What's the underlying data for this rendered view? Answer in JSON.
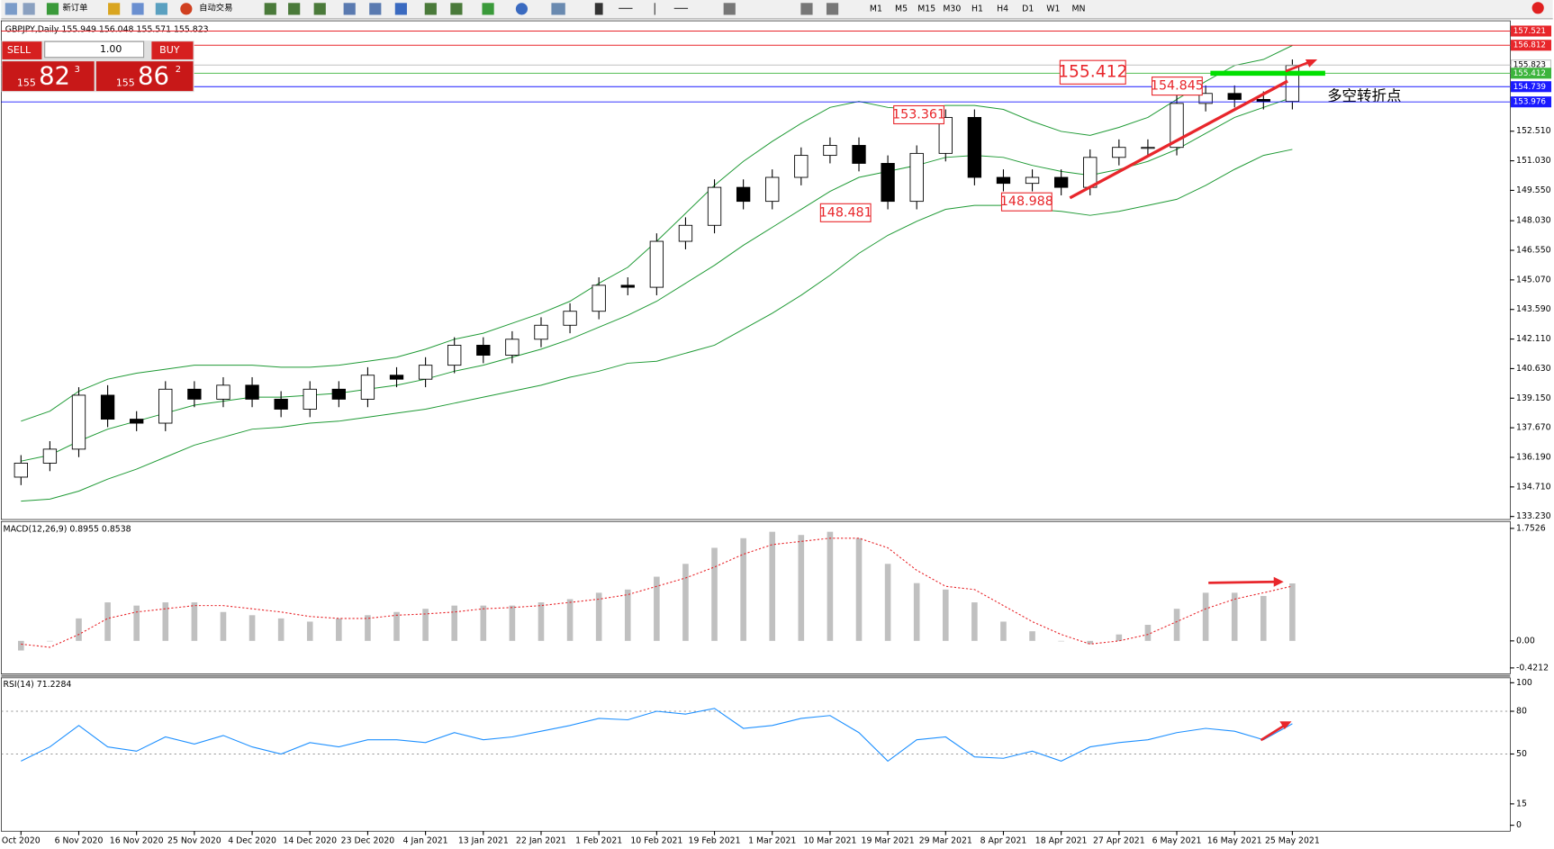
{
  "toolbar": {
    "new_order": "新订单",
    "auto_trading": "自动交易",
    "timeframes": [
      "M1",
      "M5",
      "M15",
      "M30",
      "H1",
      "H4",
      "D1",
      "W1",
      "MN"
    ]
  },
  "trade_panel": {
    "sell": "SELL",
    "buy": "BUY",
    "lot": "1.00",
    "sell_price": [
      "155",
      "82",
      "3"
    ],
    "buy_price": [
      "155",
      "86",
      "2"
    ]
  },
  "chart_data": [
    {
      "type": "candlestick",
      "title": "GBPJPY,Daily 155.949 156.048 155.571 155.823",
      "categories": [
        "Oct 2020",
        null,
        "6 Nov 2020",
        null,
        "16 Nov 2020",
        null,
        "25 Nov 2020",
        null,
        "4 Dec 2020",
        null,
        "14 Dec 2020",
        null,
        "23 Dec 2020",
        null,
        "4 Jan 2021",
        null,
        "13 Jan 2021",
        null,
        "22 Jan 2021",
        null,
        "1 Feb 2021",
        null,
        "10 Feb 2021",
        null,
        "19 Feb 2021",
        null,
        "1 Mar 2021",
        null,
        "10 Mar 2021",
        null,
        "19 Mar 2021",
        null,
        "29 Mar 2021",
        null,
        "8 Apr 2021",
        null,
        "18 Apr 2021",
        null,
        "27 Apr 2021",
        null,
        "6 May 2021",
        null,
        "16 May 2021",
        null,
        "25 May 2021"
      ],
      "open": [
        135.2,
        135.9,
        136.6,
        139.3,
        138.1,
        137.9,
        139.6,
        139.1,
        139.8,
        139.1,
        138.6,
        139.6,
        139.1,
        140.3,
        140.1,
        140.8,
        141.8,
        141.3,
        142.1,
        142.8,
        143.5,
        144.8,
        144.7,
        147.0,
        147.8,
        149.7,
        149.0,
        150.2,
        151.3,
        151.8,
        150.9,
        149.0,
        151.4,
        153.2,
        150.2,
        149.9,
        150.2,
        149.7,
        151.2,
        151.7,
        151.7,
        153.9,
        154.4,
        154.1,
        154.0
      ],
      "high": [
        136.3,
        137.0,
        139.7,
        139.8,
        138.5,
        140.0,
        140.0,
        140.2,
        140.2,
        139.5,
        140.0,
        140.0,
        140.7,
        140.7,
        141.2,
        142.2,
        142.2,
        142.5,
        143.2,
        143.9,
        145.2,
        145.2,
        147.4,
        148.2,
        150.1,
        150.1,
        150.6,
        151.7,
        152.2,
        152.2,
        151.3,
        151.8,
        153.6,
        153.6,
        150.6,
        150.6,
        150.6,
        151.6,
        152.1,
        152.1,
        154.3,
        154.8,
        154.8,
        154.5,
        156.1
      ],
      "low": [
        134.8,
        135.5,
        136.2,
        137.7,
        137.5,
        137.5,
        138.7,
        138.7,
        138.7,
        138.2,
        138.2,
        138.7,
        138.7,
        139.7,
        139.7,
        140.4,
        140.9,
        140.9,
        141.7,
        142.4,
        143.1,
        144.3,
        144.3,
        146.6,
        147.4,
        148.6,
        148.6,
        149.8,
        150.9,
        150.5,
        148.6,
        148.6,
        151.0,
        149.8,
        149.5,
        149.5,
        149.3,
        149.3,
        150.8,
        151.3,
        151.3,
        153.5,
        153.7,
        153.6,
        153.6
      ],
      "close": [
        135.9,
        136.6,
        139.3,
        138.1,
        137.9,
        139.6,
        139.1,
        139.8,
        139.1,
        138.6,
        139.6,
        139.1,
        140.3,
        140.1,
        140.8,
        141.8,
        141.3,
        142.1,
        142.8,
        143.5,
        144.8,
        144.7,
        147.0,
        147.8,
        149.7,
        149.0,
        150.2,
        151.3,
        151.8,
        150.9,
        149.0,
        151.4,
        153.2,
        150.2,
        149.9,
        150.2,
        149.7,
        151.2,
        151.7,
        151.7,
        153.9,
        154.4,
        154.1,
        154.0,
        155.8
      ],
      "bands": {
        "color": "#1f9a35",
        "upper": [
          138.0,
          138.5,
          139.5,
          140.1,
          140.4,
          140.6,
          140.8,
          140.8,
          140.8,
          140.7,
          140.7,
          140.8,
          141.0,
          141.2,
          141.6,
          142.1,
          142.4,
          142.9,
          143.4,
          144.0,
          144.9,
          145.7,
          147.0,
          148.4,
          149.8,
          151.0,
          152.0,
          152.9,
          153.7,
          154.0,
          153.7,
          153.6,
          153.8,
          153.8,
          153.6,
          153.0,
          152.5,
          152.3,
          152.7,
          153.2,
          154.1,
          155.0,
          155.8,
          156.1,
          156.8
        ],
        "middle": [
          136.0,
          136.3,
          137.0,
          137.6,
          138.0,
          138.4,
          138.8,
          139.0,
          139.2,
          139.2,
          139.3,
          139.4,
          139.6,
          139.8,
          140.1,
          140.5,
          140.8,
          141.2,
          141.6,
          142.1,
          142.7,
          143.3,
          144.0,
          144.9,
          145.8,
          146.8,
          147.7,
          148.6,
          149.5,
          150.2,
          150.5,
          150.8,
          151.2,
          151.3,
          151.2,
          150.8,
          150.5,
          150.3,
          150.6,
          151.0,
          151.6,
          152.4,
          153.2,
          153.7,
          154.2
        ],
        "lower": [
          134.0,
          134.1,
          134.5,
          135.1,
          135.6,
          136.2,
          136.8,
          137.2,
          137.6,
          137.7,
          137.9,
          138.0,
          138.2,
          138.4,
          138.6,
          138.9,
          139.2,
          139.5,
          139.8,
          140.2,
          140.5,
          140.9,
          141.0,
          141.4,
          141.8,
          142.6,
          143.4,
          144.3,
          145.3,
          146.4,
          147.3,
          148.0,
          148.6,
          148.8,
          148.8,
          148.6,
          148.5,
          148.3,
          148.5,
          148.8,
          149.1,
          149.8,
          150.6,
          151.3,
          151.6
        ]
      },
      "price_lines": [
        {
          "value": 157.521,
          "color": "#e8262b",
          "text_color": "#ffffff"
        },
        {
          "value": 156.812,
          "color": "#e8262b",
          "text_color": "#ffffff"
        },
        {
          "value": 155.823,
          "color": "#c0c0c0",
          "text_color": "#000000"
        },
        {
          "value": 155.412,
          "color": "#3cb43c",
          "text_color": "#ffffff"
        },
        {
          "value": 154.739,
          "color": "#1a1aff",
          "text_color": "#ffffff"
        },
        {
          "value": 153.976,
          "color": "#1a1aff",
          "text_color": "#ffffff"
        }
      ],
      "annotations": [
        155.412,
        154.845,
        153.361,
        148.481,
        148.988
      ],
      "note": "多空转折点",
      "ylim": [
        133.08,
        157.59
      ],
      "yticks": [
        {
          "value": 133.23,
          "label": "133.230"
        },
        {
          "value": 134.71,
          "label": "134.710"
        },
        {
          "value": 136.19,
          "label": "136.190"
        },
        {
          "value": 137.67,
          "label": "137.670"
        },
        {
          "value": 139.15,
          "label": "139.150"
        },
        {
          "value": 140.63,
          "label": "140.630"
        },
        {
          "value": 142.11,
          "label": "142.110"
        },
        {
          "value": 143.59,
          "label": "143.590"
        },
        {
          "value": 145.07,
          "label": "145.070"
        },
        {
          "value": 146.55,
          "label": "146.550"
        },
        {
          "value": 148.03,
          "label": "148.030"
        },
        {
          "value": 149.55,
          "label": "149.550"
        },
        {
          "value": 151.03,
          "label": "151.030"
        },
        {
          "value": 152.51,
          "label": "152.510"
        }
      ]
    },
    {
      "type": "macd",
      "title": "MACD(12,26,9) 0.8955 0.8538",
      "histogram": {
        "color": "#c0c0c0",
        "values": [
          -0.15,
          0.0,
          0.35,
          0.6,
          0.55,
          0.6,
          0.6,
          0.45,
          0.4,
          0.35,
          0.3,
          0.35,
          0.4,
          0.45,
          0.5,
          0.55,
          0.55,
          0.55,
          0.6,
          0.65,
          0.75,
          0.8,
          1.0,
          1.2,
          1.45,
          1.6,
          1.7,
          1.65,
          1.7,
          1.6,
          1.2,
          0.9,
          0.8,
          0.6,
          0.3,
          0.15,
          0.0,
          -0.05,
          0.1,
          0.25,
          0.5,
          0.75,
          0.75,
          0.7,
          0.8955
        ]
      },
      "signal": {
        "color": "#e8262b",
        "values": [
          -0.05,
          -0.1,
          0.1,
          0.35,
          0.45,
          0.5,
          0.55,
          0.55,
          0.5,
          0.45,
          0.38,
          0.35,
          0.35,
          0.4,
          0.42,
          0.45,
          0.5,
          0.52,
          0.55,
          0.6,
          0.65,
          0.72,
          0.85,
          0.98,
          1.15,
          1.35,
          1.5,
          1.55,
          1.6,
          1.6,
          1.45,
          1.1,
          0.85,
          0.8,
          0.55,
          0.3,
          0.1,
          -0.05,
          0.0,
          0.1,
          0.3,
          0.5,
          0.65,
          0.75,
          0.8538
        ]
      },
      "ylim": [
        -0.4212,
        1.7526
      ],
      "yticks": [
        1.7526,
        {
          "value": 0,
          "label": "0.00"
        },
        -0.4212
      ]
    },
    {
      "type": "line",
      "title": "RSI(14) 71.2284",
      "color": "#1e90ff",
      "values": [
        45,
        55,
        70,
        55,
        52,
        62,
        57,
        63,
        55,
        50,
        58,
        55,
        60,
        60,
        58,
        65,
        60,
        62,
        66,
        70,
        75,
        74,
        80,
        78,
        82,
        68,
        70,
        75,
        77,
        65,
        45,
        60,
        62,
        48,
        47,
        52,
        45,
        55,
        58,
        60,
        65,
        68,
        66,
        60,
        71.2284
      ],
      "ylim": [
        0,
        100
      ],
      "yticks": [
        100,
        80,
        50,
        15,
        0
      ],
      "levels": [
        80,
        50
      ]
    }
  ]
}
